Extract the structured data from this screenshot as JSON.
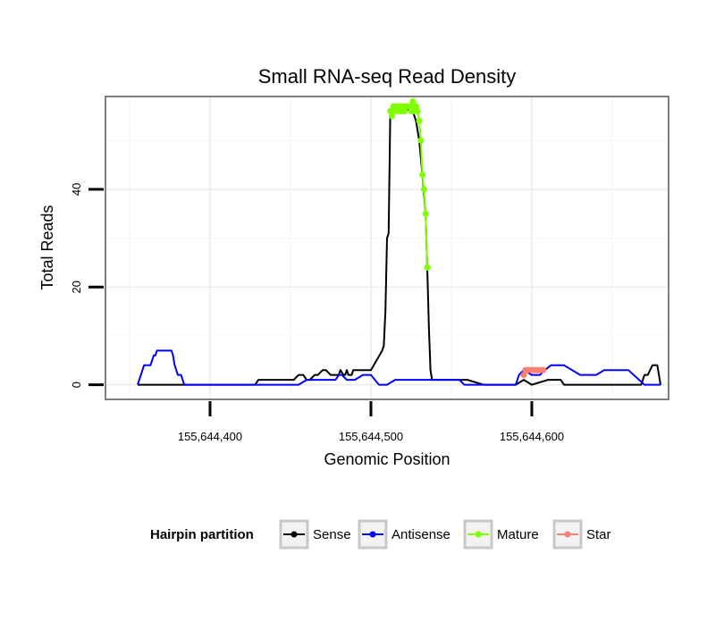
{
  "chart_data": {
    "type": "line",
    "title": "Small RNA-seq Read Density",
    "xlabel": "Genomic Position",
    "ylabel": "Total Reads",
    "xlim": [
      155644335,
      155644685
    ],
    "ylim": [
      -3,
      59
    ],
    "x_ticks": [
      155644400,
      155644500,
      155644600
    ],
    "x_tick_labels": [
      "155,644,400",
      "155,644,500",
      "155,644,600"
    ],
    "y_ticks": [
      0,
      20,
      40
    ],
    "y_tick_labels": [
      "0",
      "20",
      "40"
    ],
    "grid": true,
    "legend": {
      "position": "bottom",
      "title": "Hairpin partition",
      "entries": [
        {
          "key": "sense",
          "label": "Sense",
          "color": "#000000"
        },
        {
          "key": "antisense",
          "label": "Antisense",
          "color": "#0000ff"
        },
        {
          "key": "mature",
          "label": "Mature",
          "color": "#7fff00"
        },
        {
          "key": "star",
          "label": "Star",
          "color": "#fa8072"
        }
      ]
    },
    "series": [
      {
        "name": "Sense",
        "key": "sense",
        "color": "#000000",
        "marker": false,
        "x": [
          155644355,
          155644372,
          155644390,
          155644410,
          155644428,
          155644430,
          155644450,
          155644452,
          155644455,
          155644456,
          155644458,
          155644460,
          155644462,
          155644465,
          155644467,
          155644470,
          155644472,
          155644475,
          155644480,
          155644481,
          155644483,
          155644484,
          155644485,
          155644486,
          155644488,
          155644489,
          155644490,
          155644492,
          155644500,
          155644507,
          155644508,
          155644509,
          155644510,
          155644511,
          155644512,
          155644513,
          155644514,
          155644516,
          155644518,
          155644520,
          155644522,
          155644524,
          155644526,
          155644528,
          155644530,
          155644532,
          155644534,
          155644535,
          155644536,
          155644537,
          155644538,
          155644540,
          155644545,
          155644560,
          155644570,
          155644580,
          155644590,
          155644595,
          155644600,
          155644610,
          155644618,
          155644620,
          155644630,
          155644640,
          155644650,
          155644660,
          155644665,
          155644668,
          155644670,
          155644672,
          155644675,
          155644678,
          155644680
        ],
        "values": [
          0,
          0,
          0,
          0,
          0,
          1,
          1,
          1,
          2,
          2,
          2,
          1,
          1,
          2,
          2,
          3,
          3,
          2,
          2,
          3,
          2,
          2,
          3,
          2,
          2,
          3,
          3,
          3,
          3,
          7,
          8,
          15,
          30,
          31,
          55,
          56,
          56,
          56,
          56,
          56,
          56,
          57,
          56,
          54,
          50,
          43,
          35,
          24,
          12,
          3,
          1,
          1,
          1,
          1,
          0,
          0,
          0,
          1,
          0,
          1,
          1,
          0,
          0,
          0,
          0,
          0,
          0,
          0,
          2,
          2,
          4,
          4,
          0
        ]
      },
      {
        "name": "Antisense",
        "key": "antisense",
        "color": "#0000ff",
        "marker": false,
        "x": [
          155644355,
          155644356,
          155644357,
          155644358,
          155644359,
          155644360,
          155644361,
          155644362,
          155644363,
          155644364,
          155644365,
          155644366,
          155644367,
          155644368,
          155644369,
          155644370,
          155644371,
          155644372,
          155644373,
          155644374,
          155644375,
          155644376,
          155644377,
          155644378,
          155644379,
          155644380,
          155644381,
          155644382,
          155644383,
          155644384,
          155644390,
          155644430,
          155644455,
          155644460,
          155644470,
          155644472,
          155644478,
          155644480,
          155644482,
          155644485,
          155644490,
          155644495,
          155644500,
          155644505,
          155644510,
          155644515,
          155644540,
          155644542,
          155644545,
          155644555,
          155644558,
          155644560,
          155644565,
          155644590,
          155644592,
          155644595,
          155644600,
          155644605,
          155644608,
          155644612,
          155644615,
          155644617,
          155644620,
          155644625,
          155644630,
          155644640,
          155644645,
          155644648,
          155644652,
          155644655,
          155644658,
          155644660,
          155644670,
          155644680
        ],
        "values": [
          0,
          1,
          2,
          3,
          4,
          4,
          4,
          4,
          4,
          5,
          6,
          6,
          7,
          7,
          7,
          7,
          7,
          7,
          7,
          7,
          7,
          7,
          6,
          4,
          3,
          2,
          2,
          2,
          1,
          0,
          0,
          0,
          0,
          1,
          1,
          1,
          1,
          2,
          2,
          1,
          1,
          2,
          2,
          0,
          0,
          1,
          1,
          1,
          1,
          1,
          0,
          0,
          0,
          0,
          2,
          3,
          2,
          2,
          3,
          4,
          4,
          4,
          4,
          3,
          2,
          2,
          3,
          3,
          3,
          3,
          3,
          3,
          0,
          0
        ]
      },
      {
        "name": "Mature",
        "key": "mature",
        "color": "#7fff00",
        "marker": true,
        "x": [
          155644512,
          155644513,
          155644514,
          155644515,
          155644516,
          155644517,
          155644518,
          155644519,
          155644520,
          155644521,
          155644522,
          155644523,
          155644524,
          155644525,
          155644526,
          155644527,
          155644528,
          155644529,
          155644530,
          155644531,
          155644532,
          155644533,
          155644534,
          155644535
        ],
        "values": [
          56,
          55,
          57,
          56,
          57,
          56,
          57,
          56,
          57,
          56,
          57,
          57,
          57,
          56,
          58,
          56,
          57,
          56,
          54,
          50,
          43,
          40,
          35,
          24
        ]
      },
      {
        "name": "Star",
        "key": "star",
        "color": "#fa8072",
        "marker": true,
        "x": [
          155644595,
          155644596,
          155644597,
          155644598,
          155644599,
          155644600,
          155644601,
          155644602,
          155644603,
          155644604,
          155644605,
          155644606,
          155644607
        ],
        "values": [
          2,
          3,
          3,
          3,
          3,
          3,
          3,
          3,
          3,
          3,
          3,
          3,
          3
        ]
      }
    ]
  }
}
